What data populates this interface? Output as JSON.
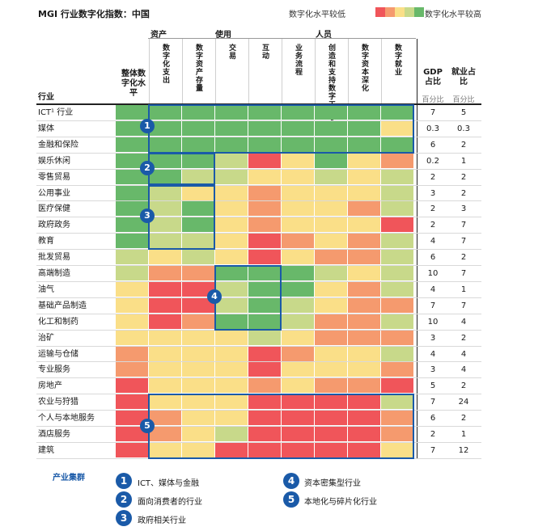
{
  "title": "MGI 行业数字化指数：中国",
  "legend": {
    "low_label": "数字化水平较低",
    "high_label": "数字化水平较高",
    "scale_colors": [
      "#f0555a",
      "#f59a6e",
      "#fadf88",
      "#c8d98a",
      "#68b86a"
    ]
  },
  "header": {
    "industry_label": "行业",
    "overall_label": "整体数字化水平",
    "groups": [
      "资产",
      "使用",
      "人员"
    ],
    "gdp_label": "GDP占比",
    "jobs_label": "就业占比",
    "pct_label": "百分比"
  },
  "chart_data": {
    "type": "heatmap",
    "columns": [
      "整体数字化水平",
      "数字化支出",
      "数字资产存量",
      "交易",
      "互动",
      "业务流程",
      "创造和支持数字工作人员",
      "数字资本深化",
      "数字就业"
    ],
    "rows": [
      "ICT¹ 行业",
      "媒体",
      "金融和保险",
      "娱乐休闲",
      "零售贸易",
      "公用事业",
      "医疗保健",
      "政府政务",
      "教育",
      "批发贸易",
      "高端制造",
      "油气",
      "基础产品制造",
      "化工和制药",
      "治矿",
      "运输与仓储",
      "专业服务",
      "房地产",
      "农业与狩猎",
      "个人与本地服务",
      "酒店服务",
      "建筑"
    ],
    "levels": [
      [
        5,
        5,
        5,
        5,
        5,
        5,
        5,
        5,
        5
      ],
      [
        5,
        5,
        5,
        5,
        5,
        5,
        5,
        5,
        3
      ],
      [
        5,
        5,
        5,
        5,
        5,
        5,
        5,
        5,
        5
      ],
      [
        5,
        5,
        5,
        4,
        1,
        3,
        5,
        3,
        2
      ],
      [
        5,
        5,
        4,
        4,
        3,
        3,
        4,
        3,
        4
      ],
      [
        5,
        4,
        3,
        3,
        2,
        3,
        3,
        3,
        4
      ],
      [
        5,
        4,
        5,
        3,
        2,
        3,
        3,
        2,
        4
      ],
      [
        5,
        4,
        5,
        3,
        2,
        3,
        3,
        3,
        1
      ],
      [
        5,
        4,
        4,
        3,
        1,
        2,
        3,
        2,
        4
      ],
      [
        4,
        3,
        4,
        3,
        1,
        3,
        2,
        2,
        4
      ],
      [
        4,
        2,
        2,
        5,
        5,
        5,
        4,
        3,
        4
      ],
      [
        3,
        1,
        1,
        4,
        5,
        5,
        3,
        2,
        4
      ],
      [
        3,
        1,
        1,
        4,
        5,
        4,
        3,
        2,
        2
      ],
      [
        3,
        1,
        2,
        5,
        5,
        4,
        2,
        2,
        4
      ],
      [
        3,
        3,
        3,
        3,
        4,
        3,
        2,
        2,
        2
      ],
      [
        2,
        3,
        3,
        3,
        1,
        2,
        3,
        3,
        4
      ],
      [
        2,
        3,
        3,
        3,
        1,
        3,
        3,
        3,
        2
      ],
      [
        1,
        3,
        3,
        3,
        2,
        3,
        2,
        2,
        1
      ],
      [
        1,
        3,
        3,
        3,
        1,
        1,
        1,
        1,
        4
      ],
      [
        1,
        2,
        3,
        3,
        1,
        1,
        1,
        1,
        2
      ],
      [
        1,
        2,
        3,
        4,
        1,
        1,
        1,
        1,
        2
      ],
      [
        1,
        3,
        3,
        1,
        1,
        1,
        1,
        1,
        3
      ]
    ],
    "gdp": [
      "7",
      "0.3",
      "6",
      "0.2",
      "2",
      "3",
      "2",
      "2",
      "4",
      "6",
      "10",
      "4",
      "7",
      "10",
      "3",
      "4",
      "3",
      "5",
      "7",
      "6",
      "2",
      "7"
    ],
    "employment": [
      "5",
      "0.3",
      "2",
      "1",
      "2",
      "2",
      "3",
      "7",
      "7",
      "2",
      "7",
      "1",
      "7",
      "4",
      "2",
      "4",
      "4",
      "2",
      "24",
      "2",
      "1",
      "12"
    ],
    "clusters": [
      {
        "number": "1",
        "label": "ICT、媒体与金融"
      },
      {
        "number": "2",
        "label": "面向消费者的行业"
      },
      {
        "number": "3",
        "label": "政府相关行业"
      },
      {
        "number": "4",
        "label": "资本密集型行业"
      },
      {
        "number": "5",
        "label": "本地化与碎片化行业"
      }
    ]
  },
  "cluster_section_title": "产业集群"
}
